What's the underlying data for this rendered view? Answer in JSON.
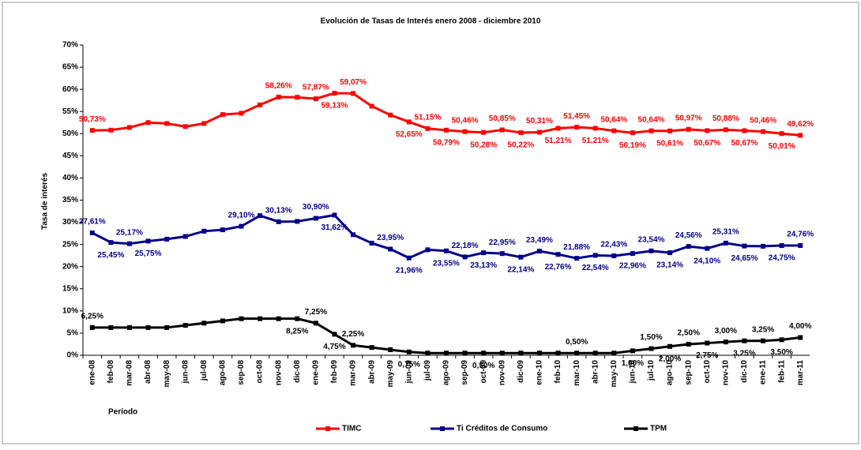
{
  "chart_data": {
    "type": "line",
    "title": "Evolución de Tasas de Interés enero 2008 -  diciembre 2010",
    "y_label": "Tasa de interés",
    "x_label": "Período",
    "categories": [
      "ene-08",
      "feb-08",
      "mar-08",
      "abr-08",
      "may-08",
      "jun-08",
      "jul-08",
      "ago-08",
      "sep-08",
      "oct-08",
      "nov-08",
      "dic-08",
      "ene-09",
      "feb-09",
      "mar-09",
      "abr-09",
      "may-09",
      "jun-09",
      "jul-09",
      "ago-09",
      "sep-09",
      "oct-09",
      "nov-09",
      "dic-09",
      "ene-10",
      "feb-10",
      "mar-10",
      "abr-10",
      "may-10",
      "jun-10",
      "jul-10",
      "ago-10",
      "sep-10",
      "oct-10",
      "nov-10",
      "dic-10",
      "ene-11",
      "feb-11",
      "mar-11"
    ],
    "ylim": [
      0,
      70
    ],
    "yticks": [
      {
        "value": 0,
        "label": "0%"
      },
      {
        "value": 5,
        "label": "5%"
      },
      {
        "value": 10,
        "label": "10%"
      },
      {
        "value": 15,
        "label": "15%"
      },
      {
        "value": 20,
        "label": "20%"
      },
      {
        "value": 25,
        "label": "25%"
      },
      {
        "value": 30,
        "label": "30%"
      },
      {
        "value": 35,
        "label": "35%"
      },
      {
        "value": 40,
        "label": "40%"
      },
      {
        "value": 45,
        "label": "45%"
      },
      {
        "value": 50,
        "label": "50%"
      },
      {
        "value": 55,
        "label": "55%"
      },
      {
        "value": 60,
        "label": "60%"
      },
      {
        "value": 65,
        "label": "65%"
      },
      {
        "value": 70,
        "label": "70%"
      }
    ],
    "grid": false,
    "series": [
      {
        "name": "TIMC",
        "color": "#ff0000",
        "values": [
          50.73,
          50.8,
          51.4,
          52.5,
          52.3,
          51.6,
          52.3,
          54.3,
          54.6,
          56.5,
          58.26,
          58.2,
          57.87,
          59.13,
          59.07,
          56.2,
          54.2,
          52.65,
          51.15,
          50.79,
          50.46,
          50.28,
          50.85,
          50.22,
          50.31,
          51.21,
          51.45,
          51.21,
          50.64,
          50.19,
          50.64,
          50.61,
          50.97,
          50.67,
          50.88,
          50.67,
          50.46,
          50.01,
          49.62
        ],
        "value_labels": [
          "50,73%",
          null,
          null,
          null,
          null,
          null,
          null,
          null,
          null,
          null,
          "58,26%",
          null,
          "57,87%",
          "59,13%",
          "59,07%",
          null,
          null,
          "52,65%",
          "51,15%",
          "50,79%",
          "50,46%",
          "50,28%",
          "50,85%",
          "50,22%",
          "50,31%",
          "51,21%",
          "51,45%",
          "51,21%",
          "50,64%",
          "50,19%",
          "50,64%",
          "50,61%",
          "50,97%",
          "50,67%",
          "50,88%",
          "50,67%",
          "50,46%",
          "50,01%",
          "49,62%"
        ]
      },
      {
        "name": "Ti Créditos de Consumo",
        "color": "#00008b",
        "values": [
          27.61,
          25.45,
          25.17,
          25.75,
          26.2,
          26.8,
          28.0,
          28.3,
          29.1,
          31.5,
          30.13,
          30.2,
          30.9,
          31.62,
          27.2,
          25.3,
          23.95,
          21.96,
          23.8,
          23.55,
          22.18,
          23.13,
          22.95,
          22.14,
          23.49,
          22.76,
          21.88,
          22.54,
          22.43,
          22.96,
          23.54,
          23.14,
          24.56,
          24.1,
          25.31,
          24.65,
          24.6,
          24.75,
          24.76
        ],
        "value_labels": [
          "27,61%",
          "25,45%",
          "25,17%",
          "25,75%",
          null,
          null,
          null,
          null,
          "29,10%",
          null,
          "30,13%",
          null,
          "30,90%",
          "31,62%",
          null,
          null,
          "23,95%",
          "21,96%",
          null,
          "23,55%",
          "22,18%",
          "23,13%",
          "22,95%",
          "22,14%",
          "23,49%",
          "22,76%",
          "21,88%",
          "22,54%",
          "22,43%",
          "22,96%",
          "23,54%",
          "23,14%",
          "24,56%",
          "24,10%",
          "25,31%",
          "24,65%",
          null,
          "24,75%",
          "24,76%"
        ]
      },
      {
        "name": "TPM",
        "color": "#000000",
        "values": [
          6.25,
          6.25,
          6.25,
          6.25,
          6.25,
          6.75,
          7.25,
          7.75,
          8.25,
          8.25,
          8.25,
          8.25,
          7.25,
          4.75,
          2.25,
          1.75,
          1.25,
          0.75,
          0.5,
          0.5,
          0.5,
          0.5,
          0.5,
          0.5,
          0.5,
          0.5,
          0.5,
          0.5,
          0.5,
          1.0,
          1.5,
          2.0,
          2.5,
          2.75,
          3.0,
          3.25,
          3.25,
          3.5,
          4.0
        ],
        "value_labels": [
          "6,25%",
          null,
          null,
          null,
          null,
          null,
          null,
          null,
          null,
          null,
          null,
          "8,25%",
          "7,25%",
          "4,75%",
          "2,25%",
          null,
          null,
          "0,75%",
          null,
          null,
          null,
          "0,50%",
          null,
          null,
          null,
          null,
          "0,50%",
          null,
          null,
          "1,00%",
          "1,50%",
          "2,00%",
          "2,50%",
          "2,75%",
          "3,00%",
          "3,25%",
          "3,25%",
          "3,50%",
          "4,00%"
        ]
      }
    ]
  }
}
